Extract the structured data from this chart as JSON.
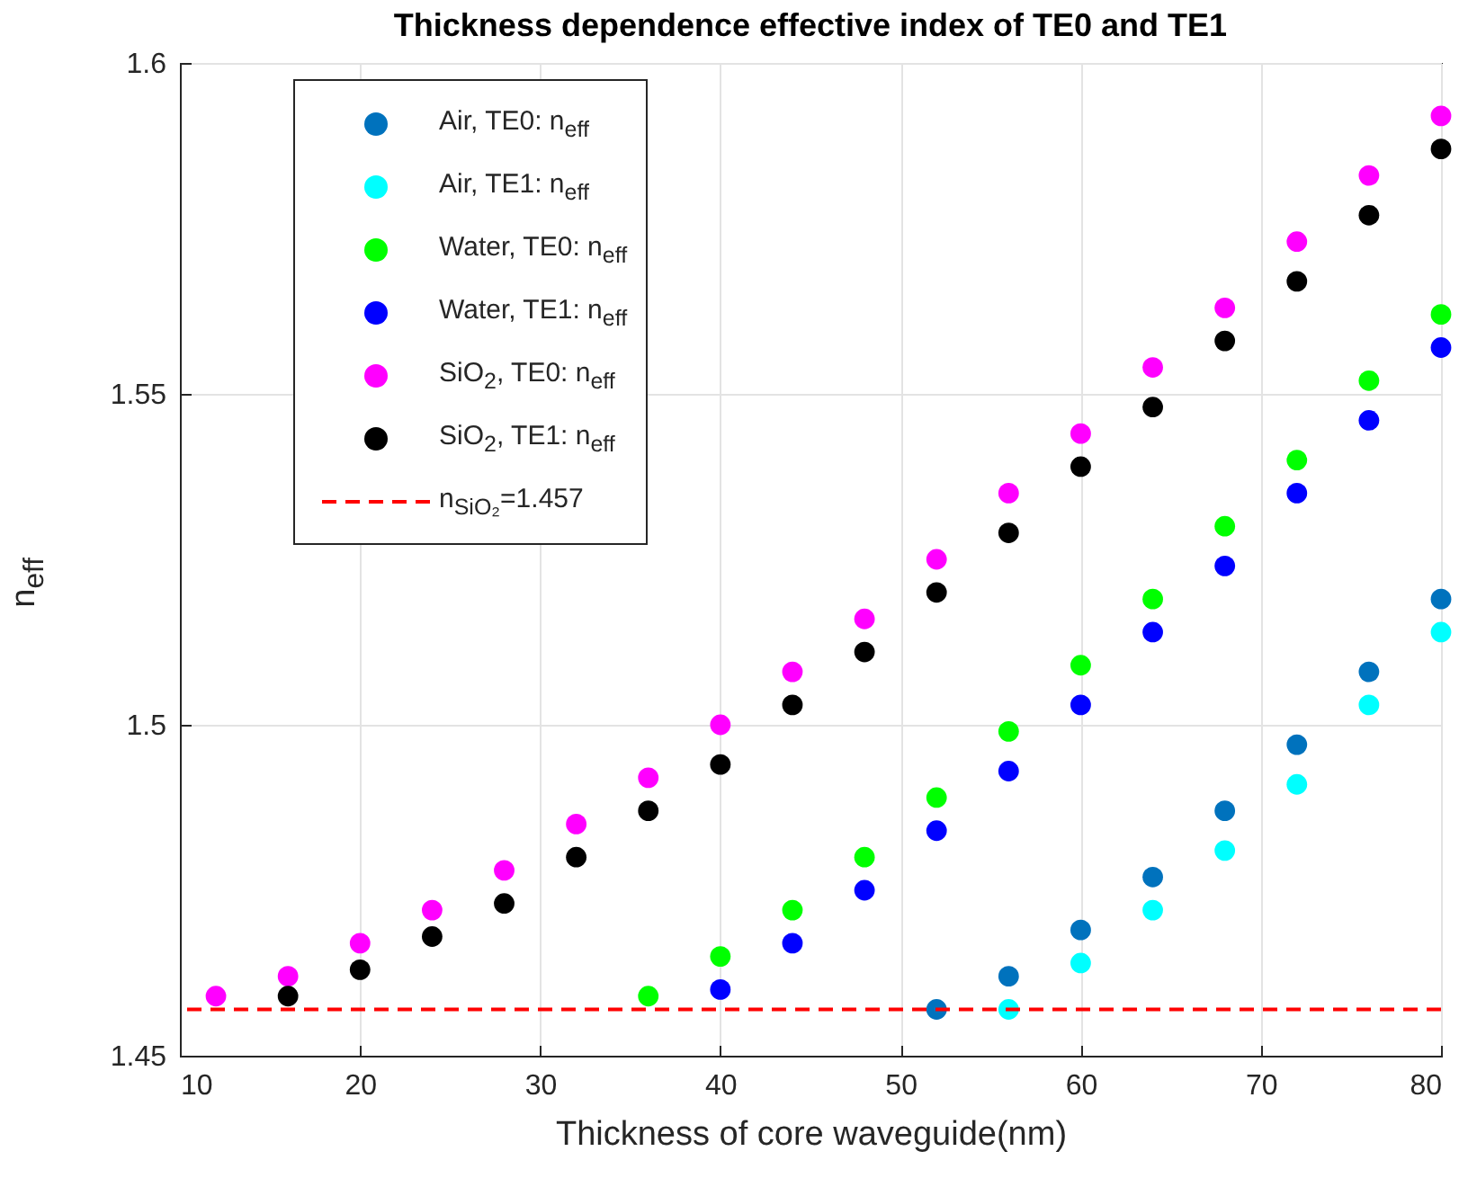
{
  "chart_data": {
    "type": "scatter",
    "title": "Thickness dependence effective index of TE0 and TE1",
    "xlabel": "Thickness of core waveguide(nm)",
    "ylabel": "n$_{eff}$",
    "xlim": [
      10,
      80
    ],
    "xticks": [
      10,
      20,
      30,
      40,
      50,
      60,
      70,
      80
    ],
    "ylim": [
      1.45,
      1.6
    ],
    "yticks": [
      1.45,
      1.5,
      1.55,
      1.6
    ],
    "grid": true,
    "legend": "top left",
    "marker": "circle",
    "series": [
      {
        "name": "Air, TE0: n$_{eff}$",
        "color": "#0072bd",
        "x": [
          52,
          56,
          60,
          64,
          68,
          72,
          76,
          80
        ],
        "values": [
          1.457,
          1.462,
          1.469,
          1.477,
          1.487,
          1.497,
          1.508,
          1.519
        ]
      },
      {
        "name": "Air, TE1: n$_{eff}$",
        "color": "#00ffff",
        "x": [
          56,
          60,
          64,
          68,
          72,
          76,
          80
        ],
        "values": [
          1.457,
          1.464,
          1.472,
          1.481,
          1.491,
          1.503,
          1.514
        ]
      },
      {
        "name": "Water, TE0: n$_{eff}$",
        "color": "#00ff00",
        "x": [
          36,
          40,
          44,
          48,
          52,
          56,
          60,
          64,
          68,
          72,
          76,
          80
        ],
        "values": [
          1.459,
          1.465,
          1.472,
          1.48,
          1.489,
          1.499,
          1.509,
          1.519,
          1.53,
          1.54,
          1.552,
          1.562
        ]
      },
      {
        "name": "Water, TE1: n$_{eff}$",
        "color": "#0000ff",
        "x": [
          40,
          44,
          48,
          52,
          56,
          60,
          64,
          68,
          72,
          76,
          80
        ],
        "values": [
          1.46,
          1.467,
          1.475,
          1.484,
          1.493,
          1.503,
          1.514,
          1.524,
          1.535,
          1.546,
          1.557
        ]
      },
      {
        "name": "SiO$_{2}$, TE0: n$_{eff}$",
        "color": "#ff00ff",
        "x": [
          12,
          16,
          20,
          24,
          28,
          32,
          36,
          40,
          44,
          48,
          52,
          56,
          60,
          64,
          68,
          72,
          76,
          80
        ],
        "values": [
          1.459,
          1.462,
          1.467,
          1.472,
          1.478,
          1.485,
          1.492,
          1.5,
          1.508,
          1.516,
          1.525,
          1.535,
          1.544,
          1.554,
          1.563,
          1.573,
          1.583,
          1.592
        ]
      },
      {
        "name": "SiO$_{2}$, TE1: n$_{eff}$",
        "color": "#000000",
        "x": [
          16,
          20,
          24,
          28,
          32,
          36,
          40,
          44,
          48,
          52,
          56,
          60,
          64,
          68,
          72,
          76,
          80
        ],
        "values": [
          1.459,
          1.463,
          1.468,
          1.473,
          1.48,
          1.487,
          1.494,
          1.503,
          1.511,
          1.52,
          1.529,
          1.539,
          1.548,
          1.558,
          1.567,
          1.577,
          1.587
        ]
      }
    ],
    "ref_lines": [
      {
        "axis": "y",
        "value": 1.457,
        "label": "n$_{SiO₂}$=1.457",
        "color": "#ff0000",
        "line_style": "dashed"
      }
    ]
  }
}
